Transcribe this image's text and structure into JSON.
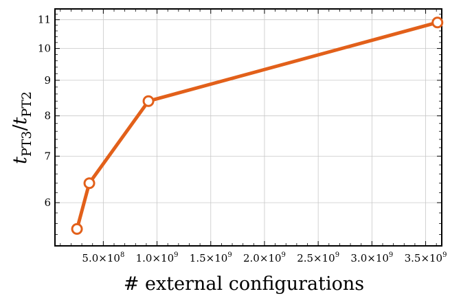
{
  "chart_data": {
    "type": "line",
    "title": "",
    "xlabel": "# external configurations",
    "ylabel": {
      "main_1": "t",
      "sub_1": "PT3",
      "slash": "/",
      "main_2": "t",
      "sub_2": "PT2"
    },
    "x_scale": "linear",
    "y_scale": "log",
    "xlim": [
      50000000,
      3650000000
    ],
    "ylim": [
      5.2,
      11.4
    ],
    "grid": true,
    "legend": "none",
    "x_ticks": [
      {
        "value": 500000000,
        "mantissa": "5.0",
        "times": "×",
        "base": "10",
        "exp": "8"
      },
      {
        "value": 1000000000,
        "mantissa": "1.0",
        "times": "×",
        "base": "10",
        "exp": "9"
      },
      {
        "value": 1500000000,
        "mantissa": "1.5",
        "times": "×",
        "base": "10",
        "exp": "9"
      },
      {
        "value": 2000000000,
        "mantissa": "2.0",
        "times": "×",
        "base": "10",
        "exp": "9"
      },
      {
        "value": 2500000000,
        "mantissa": "2.5",
        "times": "×",
        "base": "10",
        "exp": "9"
      },
      {
        "value": 3000000000,
        "mantissa": "3.0",
        "times": "×",
        "base": "10",
        "exp": "9"
      },
      {
        "value": 3500000000,
        "mantissa": "3.5",
        "times": "×",
        "base": "10",
        "exp": "9"
      }
    ],
    "y_ticks": [
      {
        "value": 6,
        "label": "6"
      },
      {
        "value": 7,
        "label": "7"
      },
      {
        "value": 8,
        "label": "8"
      },
      {
        "value": 9,
        "label": "9"
      },
      {
        "value": 10,
        "label": "10"
      },
      {
        "value": 11,
        "label": "11"
      }
    ],
    "series": [
      {
        "color": "#e2601a",
        "x": [
          255000000,
          370000000,
          920000000,
          3610000000
        ],
        "y": [
          5.5,
          6.4,
          8.4,
          10.9
        ]
      }
    ]
  }
}
